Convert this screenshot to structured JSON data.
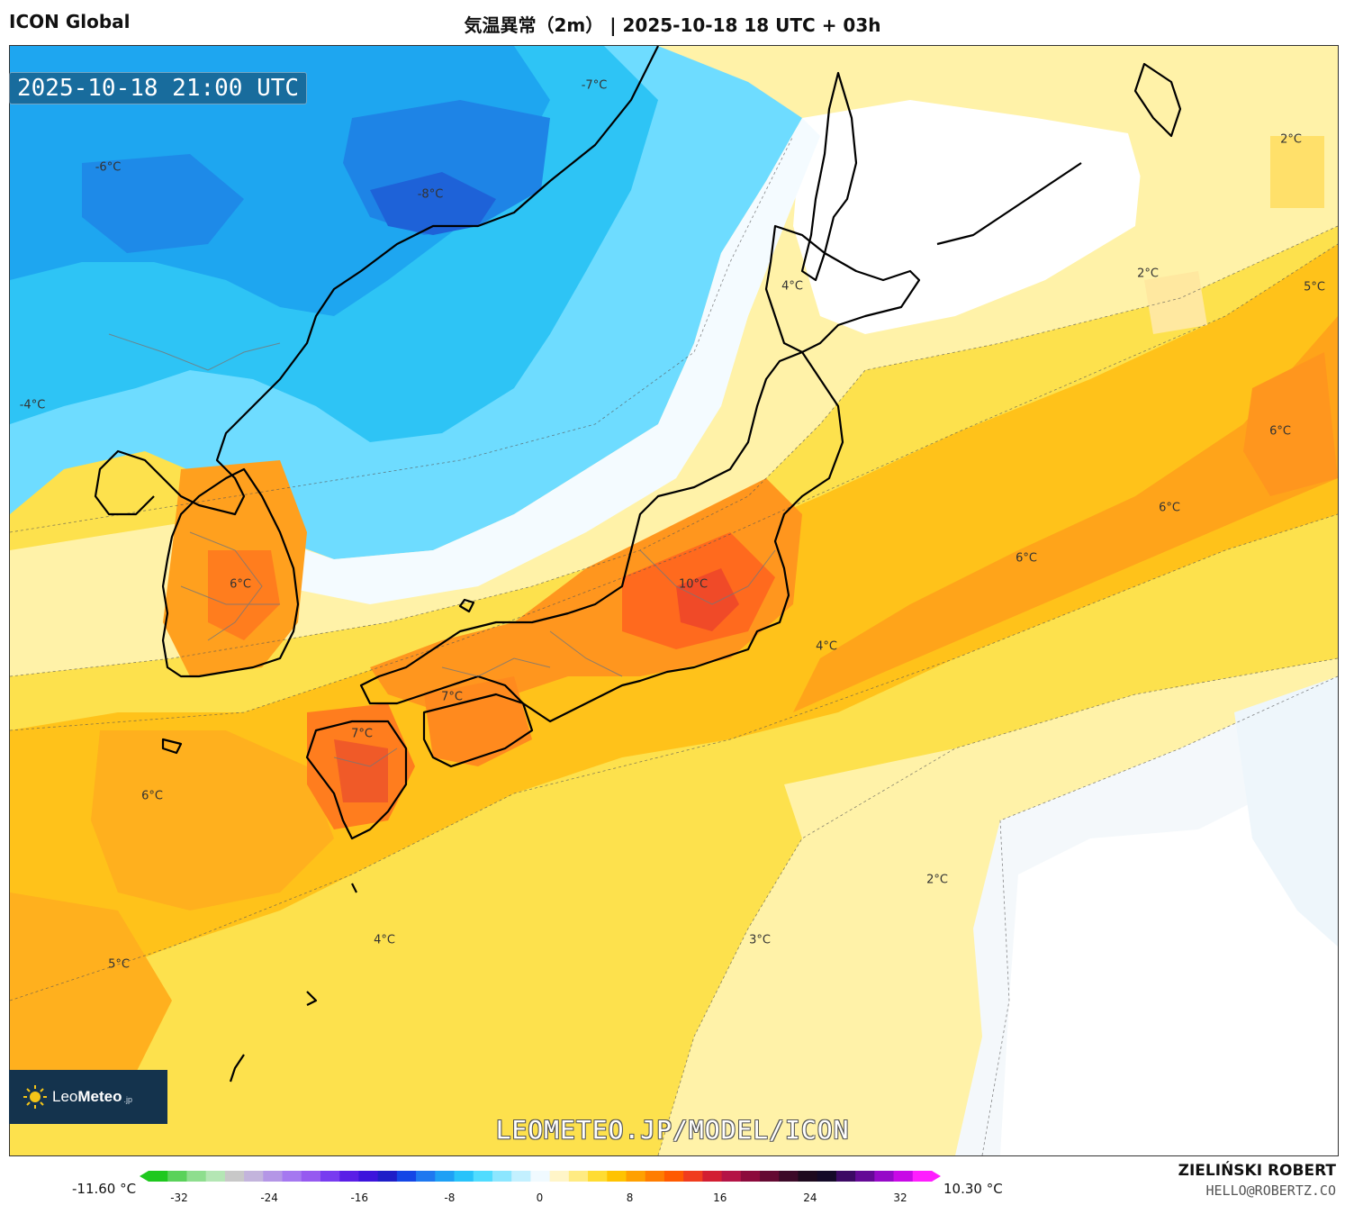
{
  "header": {
    "model": "ICON Global",
    "title": "気温異常（2m） | 2025-10-18 18 UTC + 03h"
  },
  "map": {
    "valid_time": "2025-10-18 21:00 UTC",
    "watermark_url": "LEOMETEO.JP/MODEL/ICON",
    "logo": {
      "brand_a": "Leo",
      "brand_b": "Meteo",
      "suffix": ".jp"
    },
    "labels": [
      {
        "text": "-7°C",
        "name": "label-minus7-north"
      },
      {
        "text": "-6°C",
        "name": "label-minus6-west"
      },
      {
        "text": "-8°C",
        "name": "label-minus8-coast"
      },
      {
        "text": "-4°C",
        "name": "label-minus4-west"
      },
      {
        "text": "2°C",
        "name": "label-2-kamchatka"
      },
      {
        "text": "2°C",
        "name": "label-2-kurils"
      },
      {
        "text": "5°C",
        "name": "label-5-east"
      },
      {
        "text": "4°C",
        "name": "label-4-hokkaido"
      },
      {
        "text": "6°C",
        "name": "label-6-pacific-ne"
      },
      {
        "text": "6°C",
        "name": "label-6-pacific-mid"
      },
      {
        "text": "6°C",
        "name": "label-6-pacific-w"
      },
      {
        "text": "6°C",
        "name": "label-6-korea"
      },
      {
        "text": "10°C",
        "name": "label-10-kanto"
      },
      {
        "text": "4°C",
        "name": "label-4-south-kanto"
      },
      {
        "text": "7°C",
        "name": "label-7-shikoku"
      },
      {
        "text": "7°C",
        "name": "label-7-kyushu"
      },
      {
        "text": "6°C",
        "name": "label-6-ecs"
      },
      {
        "text": "2°C",
        "name": "label-2-pacific-s"
      },
      {
        "text": "4°C",
        "name": "label-4-ryukyu"
      },
      {
        "text": "3°C",
        "name": "label-3-pacific"
      },
      {
        "text": "5°C",
        "name": "label-5-sw"
      }
    ]
  },
  "colorbar": {
    "min_label": "-11.60 °C",
    "max_label": "10.30 °C",
    "ticks": [
      "-32",
      "-24",
      "-16",
      "-8",
      "0",
      "8",
      "16",
      "24",
      "32"
    ],
    "colors": [
      "#1ec81e",
      "#5ad25a",
      "#8ede8e",
      "#b4e6b4",
      "#c8c8c8",
      "#c3b4dc",
      "#b496e6",
      "#a578f0",
      "#965af0",
      "#783cf0",
      "#5a1ee6",
      "#3c14dc",
      "#1e1ec8",
      "#1446e6",
      "#1e78f0",
      "#1ea0f5",
      "#28c3fa",
      "#50dcff",
      "#8ce6ff",
      "#c3f0ff",
      "#f0faff",
      "#fff5c8",
      "#ffeb82",
      "#ffdc32",
      "#ffc300",
      "#ffa000",
      "#ff7d00",
      "#ff5a00",
      "#f03c1e",
      "#d21e32",
      "#b41446",
      "#8c0a3c",
      "#640a32",
      "#3c0a28",
      "#1e0a1e",
      "#140a28",
      "#3c0a64",
      "#640a96",
      "#960ac8",
      "#c80ae6",
      "#ff1eff"
    ]
  },
  "credits": {
    "author": "ZIELIŃSKI ROBERT",
    "email": "HELLO@ROBERTZ.CO"
  }
}
